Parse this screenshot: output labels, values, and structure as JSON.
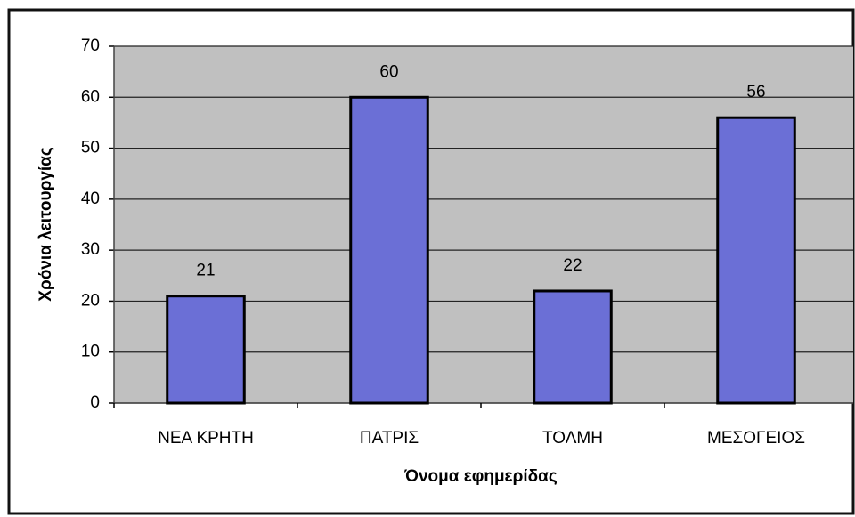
{
  "chart_data": {
    "type": "bar",
    "categories": [
      "ΝΕΑ ΚΡΗΤΗ",
      "ΠΑΤΡΙΣ",
      "ΤΟΛΜΗ",
      "ΜΕΣΟΓΕΙΟΣ"
    ],
    "values": [
      21,
      60,
      22,
      56
    ],
    "color": "#6b6fd6",
    "x_label": "Όνομα εφημερίδας",
    "y_label": "Χρόνια λειτουργίας",
    "ylim": [
      0,
      70
    ],
    "yticks": [
      0,
      10,
      20,
      30,
      40,
      50,
      60,
      70
    ],
    "grid": true
  }
}
